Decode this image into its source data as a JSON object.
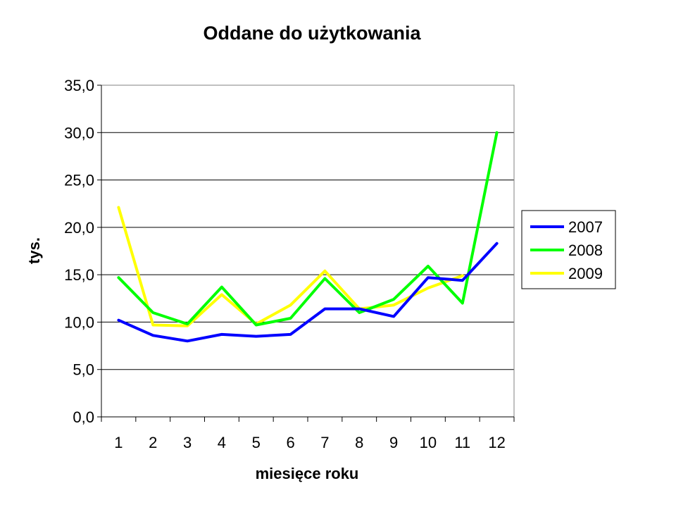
{
  "chart_data": {
    "type": "line",
    "title": "Oddane do użytkowania",
    "xlabel": "miesięce roku",
    "ylabel": "tys.",
    "categories": [
      "1",
      "2",
      "3",
      "4",
      "5",
      "6",
      "7",
      "8",
      "9",
      "10",
      "11",
      "12"
    ],
    "ylim": [
      0,
      35
    ],
    "yticks": [
      "0,0",
      "5,0",
      "10,0",
      "15,0",
      "20,0",
      "25,0",
      "30,0",
      "35,0"
    ],
    "ytick_values": [
      0,
      5,
      10,
      15,
      20,
      25,
      30,
      35
    ],
    "grid": true,
    "legend_position": "right",
    "series": [
      {
        "name": "2007",
        "color": "#0000ff",
        "values": [
          10.2,
          8.6,
          8.0,
          8.7,
          8.5,
          8.7,
          11.4,
          11.4,
          10.6,
          14.7,
          14.4,
          18.3
        ]
      },
      {
        "name": "2008",
        "color": "#00ff00",
        "values": [
          14.7,
          11.0,
          9.8,
          13.7,
          9.7,
          10.4,
          14.6,
          11.0,
          12.4,
          15.9,
          12.0,
          30.0
        ]
      },
      {
        "name": "2009",
        "color": "#ffff00",
        "values": [
          22.1,
          9.7,
          9.6,
          12.9,
          9.8,
          11.8,
          15.4,
          11.4,
          11.8,
          13.6,
          14.9,
          null
        ]
      }
    ]
  }
}
